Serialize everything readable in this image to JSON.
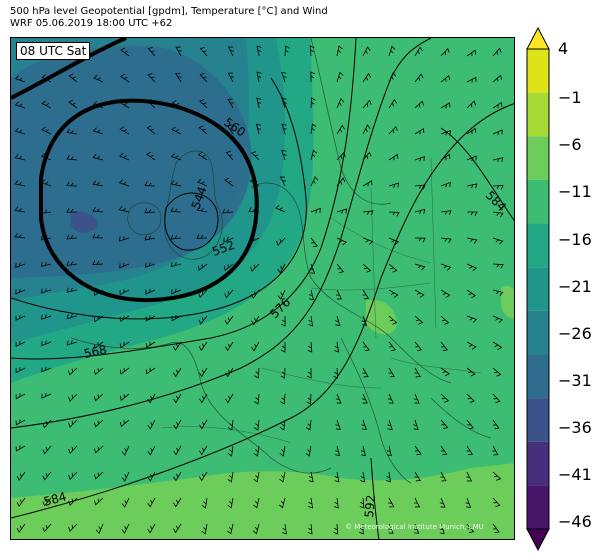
{
  "header": {
    "line1": "500 hPa level Geopotential [gpdm], Temperature [°C] and Wind",
    "line2": "WRF 05.06.2019 18:00 UTC +62"
  },
  "valid_label": "08 UTC Sat",
  "credit": "© Meteorological Institute Munich, LMU",
  "contour_labels": [
    "544",
    "552",
    "560",
    "568",
    "576",
    "584",
    "584",
    "592"
  ],
  "colorbar": {
    "ticks": [
      "4",
      "−1",
      "−6",
      "−11",
      "−16",
      "−21",
      "−26",
      "−31",
      "−36",
      "−41",
      "−46"
    ],
    "colors": [
      "#fde725",
      "#dde318",
      "#a6db35",
      "#6ccd5a",
      "#3dbc74",
      "#22a884",
      "#1f958b",
      "#26828e",
      "#2f6c8e",
      "#3b528b",
      "#472f7d",
      "#481668",
      "#440154"
    ]
  }
}
